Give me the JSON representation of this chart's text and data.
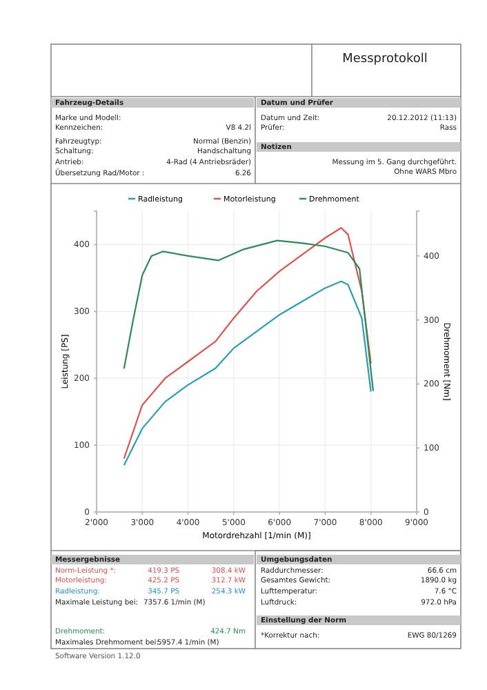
{
  "chart_data": {
    "type": "line",
    "xlabel": "Motordrehzahl [1/min (M)]",
    "ylabel": "Leistung [PS]",
    "y2label": "Drehmoment [Nm]",
    "xlim": [
      2000,
      9000
    ],
    "xticks": [
      {
        "value": 2000,
        "label": "2'000"
      },
      {
        "value": 3000,
        "label": "3'000"
      },
      {
        "value": 4000,
        "label": "4'000"
      },
      {
        "value": 5000,
        "label": "5'000"
      },
      {
        "value": 6000,
        "label": "6'000"
      },
      {
        "value": 7000,
        "label": "7'000"
      },
      {
        "value": 8000,
        "label": "8'000"
      },
      {
        "value": 9000,
        "label": "9'000"
      }
    ],
    "ylim": [
      0,
      450
    ],
    "yticks": [
      0,
      100,
      200,
      300,
      400
    ],
    "y2lim": [
      0,
      470
    ],
    "y2ticks": [
      0,
      100,
      200,
      300,
      400
    ],
    "grid": true,
    "legend": "top",
    "line_style": "solid",
    "series": [
      {
        "name": "Radleistung",
        "color": "#2a9db3",
        "x": [
          2600,
          3000,
          3500,
          4000,
          4600,
          5000,
          5500,
          6000,
          6500,
          7000,
          7350,
          7500,
          7800,
          8000
        ],
        "values": [
          70,
          125,
          165,
          190,
          215,
          245,
          270,
          295,
          315,
          335,
          345,
          340,
          290,
          180
        ]
      },
      {
        "name": "Motorleistung",
        "color": "#d9534f",
        "x": [
          2600,
          3000,
          3500,
          4000,
          4600,
          5000,
          5500,
          6000,
          6500,
          7000,
          7350,
          7500,
          7800,
          8000
        ],
        "values": [
          80,
          160,
          200,
          225,
          255,
          290,
          330,
          360,
          385,
          410,
          425,
          415,
          330,
          222
        ]
      },
      {
        "name": "Drehmoment",
        "color": "#2e8b57",
        "axis": "y2",
        "x": [
          2600,
          2800,
          3000,
          3200,
          3450,
          4000,
          4660,
          5200,
          5950,
          6500,
          7000,
          7500,
          7750,
          8050
        ],
        "values": [
          224,
          300,
          370,
          400,
          407,
          400,
          393,
          410,
          424,
          420,
          415,
          405,
          380,
          189
        ]
      }
    ],
    "annotations": [
      "Messprotokoll",
      "Fahrzeug-Details",
      "Datum und Prüfer",
      "Marke und Modell:",
      "Kennzeichen:",
      "V8 4.2l",
      "Fahrzeugtyp:",
      "Normal (Benzin)",
      "Schaltung:",
      "Handschaltung",
      "Antrieb:",
      "4-Rad (4 Antriebsräder)",
      "Übersetzung Rad/Motor :",
      "6.26",
      "Datum und Zeit:",
      "20.12.2012 (11:13)",
      "Prüfer:",
      "Rass",
      "Notizen",
      "Messung im 5. Gang durchgeführt.",
      "Ohne WARS Mbro",
      "Messergebnisse",
      "Norm-Leistung *:",
      "419.3 PS",
      "308.4 kW",
      "Motorleistung:",
      "425.2 PS",
      "312.7 kW",
      "Radleistung:",
      "345.7 PS",
      "254.3 kW",
      "Maximale Leistung bei:",
      "7357.6 1/min (M)",
      "Drehmoment:",
      "424.7 Nm",
      "Maximales Drehmoment bei:",
      "5957.4 1/min (M)",
      "Umgebungsdaten",
      "Raddurchmesser:",
      "66.6 cm",
      "Gesamtes Gewicht:",
      "1890.0 kg",
      "Lufttemperatur:",
      "7.6 °C",
      "Luftdruck:",
      "972.0 hPa",
      "Einstellung der Norm",
      "*Korrektur nach:",
      "EWG 80/1269",
      "Software Version 1.12.0"
    ]
  }
}
